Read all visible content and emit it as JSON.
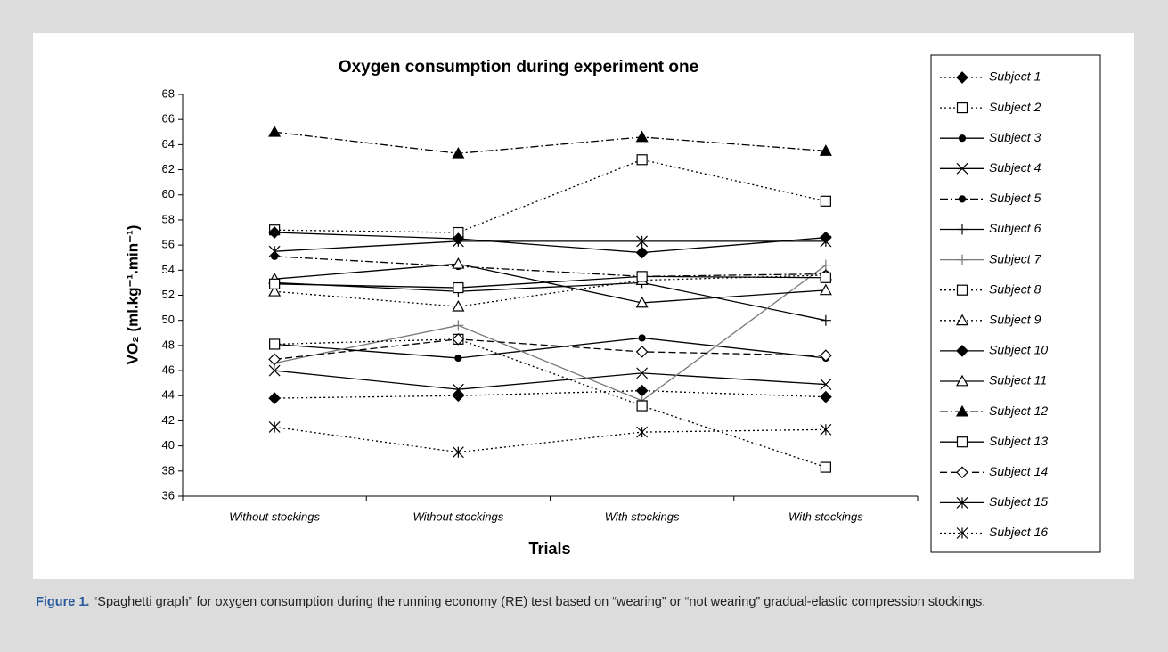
{
  "chart_data": {
    "type": "line",
    "title": "Oxygen consumption during experiment one",
    "x_label": "Trials",
    "y_label": "VO₂ (ml.kg⁻¹.min⁻¹)",
    "categories": [
      "Without stockings",
      "Without stockings",
      "With stockings",
      "With stockings"
    ],
    "ylim": [
      36,
      68
    ],
    "yticks": [
      36,
      38,
      40,
      42,
      44,
      46,
      48,
      50,
      52,
      54,
      56,
      58,
      60,
      62,
      64,
      66,
      68
    ],
    "legend": "right",
    "series": [
      {
        "name": "Subject 1",
        "color": "#000000",
        "marker": "filled-diamond",
        "line_style": "dotted",
        "values": [
          43.8,
          44.0,
          44.4,
          43.9
        ]
      },
      {
        "name": "Subject 2",
        "color": "#000000",
        "marker": "open-square",
        "line_style": "dotted",
        "values": [
          57.2,
          57.0,
          62.8,
          59.5
        ]
      },
      {
        "name": "Subject 3",
        "color": "#000000",
        "marker": "dot",
        "line_style": "solid",
        "values": [
          48.1,
          47.0,
          48.6,
          47.0
        ]
      },
      {
        "name": "Subject 4",
        "color": "#000000",
        "marker": "x",
        "line_style": "solid",
        "values": [
          46.0,
          44.5,
          45.8,
          44.9
        ]
      },
      {
        "name": "Subject 5",
        "color": "#000000",
        "marker": "dot",
        "line_style": "dash-dot",
        "values": [
          55.1,
          54.3,
          53.5,
          53.7
        ]
      },
      {
        "name": "Subject 6",
        "color": "#000000",
        "marker": "plus",
        "line_style": "solid",
        "values": [
          53.0,
          52.3,
          53.0,
          50.0
        ]
      },
      {
        "name": "Subject 7",
        "color": "#777777",
        "marker": "plus",
        "line_style": "solid",
        "values": [
          46.6,
          49.6,
          43.6,
          54.4
        ]
      },
      {
        "name": "Subject 8",
        "color": "#000000",
        "marker": "open-square",
        "line_style": "dotted",
        "values": [
          48.1,
          48.5,
          43.2,
          38.3
        ]
      },
      {
        "name": "Subject 9",
        "color": "#000000",
        "marker": "open-triangle",
        "line_style": "dotted",
        "values": [
          52.3,
          51.1,
          53.2,
          53.6
        ]
      },
      {
        "name": "Subject 10",
        "color": "#000000",
        "marker": "filled-diamond",
        "line_style": "solid",
        "values": [
          57.0,
          56.5,
          55.4,
          56.6
        ]
      },
      {
        "name": "Subject 11",
        "color": "#000000",
        "marker": "open-triangle",
        "line_style": "solid",
        "values": [
          53.3,
          54.5,
          51.4,
          52.4
        ]
      },
      {
        "name": "Subject 12",
        "color": "#000000",
        "marker": "filled-triangle",
        "line_style": "dash-dot",
        "values": [
          65.0,
          63.3,
          64.6,
          63.5
        ]
      },
      {
        "name": "Subject 13",
        "color": "#000000",
        "marker": "open-square",
        "line_style": "solid",
        "values": [
          52.9,
          52.6,
          53.5,
          53.4
        ]
      },
      {
        "name": "Subject 14",
        "color": "#000000",
        "marker": "open-diamond",
        "line_style": "dashed",
        "values": [
          46.9,
          48.5,
          47.5,
          47.2
        ]
      },
      {
        "name": "Subject 15",
        "color": "#000000",
        "marker": "asterisk",
        "line_style": "solid",
        "values": [
          55.5,
          56.3,
          56.3,
          56.3
        ]
      },
      {
        "name": "Subject 16",
        "color": "#000000",
        "marker": "asterisk",
        "line_style": "dotted",
        "values": [
          41.5,
          39.5,
          41.1,
          41.3
        ]
      }
    ]
  },
  "caption_label": "Figure 1.",
  "caption": "“Spaghetti graph” for oxygen consumption during the running economy (RE) test based on “wearing” or “not wearing” gradual-elastic compression stockings."
}
